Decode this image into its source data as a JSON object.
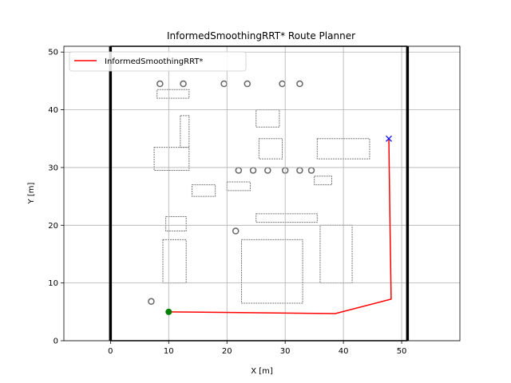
{
  "chart_data": {
    "type": "line",
    "title": "InformedSmoothingRRT* Route Planner",
    "xlabel": "X [m]",
    "ylabel": "Y [m]",
    "xlim": [
      -8,
      60
    ],
    "ylim": [
      0,
      51
    ],
    "xticks": [
      0,
      10,
      20,
      30,
      40,
      50
    ],
    "yticks": [
      0,
      10,
      20,
      30,
      40,
      50
    ],
    "grid": true,
    "legend_position": "top-left",
    "map_bounds": {
      "x": [
        0,
        51
      ],
      "y": [
        0,
        51
      ]
    },
    "series": [
      {
        "name": "InformedSmoothingRRT*",
        "color": "#ff0000",
        "x": [
          10,
          38.6,
          48.2,
          48.0,
          47.8
        ],
        "y": [
          5,
          4.7,
          7.2,
          20,
          35
        ]
      }
    ],
    "start": {
      "x": 10,
      "y": 5,
      "color": "#008000",
      "marker": "circle"
    },
    "goal": {
      "x": 47.8,
      "y": 35,
      "color": "#0000ff",
      "marker": "x"
    },
    "obstacles": [
      {
        "type": "rect",
        "x": [
          7.5,
          13.5
        ],
        "y": [
          29.5,
          33.5
        ]
      },
      {
        "type": "rect",
        "x": [
          12,
          13.5
        ],
        "y": [
          33.5,
          39
        ]
      },
      {
        "type": "rect",
        "x": [
          8,
          13.5
        ],
        "y": [
          42,
          43.5
        ]
      },
      {
        "type": "rect",
        "x": [
          25,
          29
        ],
        "y": [
          37,
          40
        ]
      },
      {
        "type": "rect",
        "x": [
          25.5,
          29.5
        ],
        "y": [
          31.5,
          35
        ]
      },
      {
        "type": "rect",
        "x": [
          35.5,
          44.5
        ],
        "y": [
          31.5,
          35
        ]
      },
      {
        "type": "rect",
        "x": [
          25,
          35.5
        ],
        "y": [
          20.5,
          22
        ]
      },
      {
        "type": "rect",
        "x": [
          22.5,
          33
        ],
        "y": [
          6.5,
          17.5
        ]
      },
      {
        "type": "rect",
        "x": [
          36,
          41.5
        ],
        "y": [
          10,
          20
        ]
      },
      {
        "type": "rect",
        "x": [
          9,
          13
        ],
        "y": [
          10,
          17.5
        ]
      },
      {
        "type": "rect",
        "x": [
          9.5,
          13
        ],
        "y": [
          19,
          21.5
        ]
      },
      {
        "type": "rect",
        "x": [
          35,
          38
        ],
        "y": [
          27,
          28.5
        ]
      },
      {
        "type": "rect",
        "x": [
          20,
          24
        ],
        "y": [
          26,
          27.5
        ]
      },
      {
        "type": "rect",
        "x": [
          14,
          18
        ],
        "y": [
          25,
          27
        ]
      }
    ],
    "obstacle_circles": [
      {
        "x": 8.5,
        "y": 44.5
      },
      {
        "x": 12.5,
        "y": 44.5
      },
      {
        "x": 19.5,
        "y": 44.5
      },
      {
        "x": 23.5,
        "y": 44.5
      },
      {
        "x": 29.5,
        "y": 44.5
      },
      {
        "x": 32.5,
        "y": 44.5
      },
      {
        "x": 22,
        "y": 29.5
      },
      {
        "x": 24.5,
        "y": 29.5
      },
      {
        "x": 27,
        "y": 29.5
      },
      {
        "x": 30,
        "y": 29.5
      },
      {
        "x": 32.5,
        "y": 29.5
      },
      {
        "x": 34.5,
        "y": 29.5
      },
      {
        "x": 7,
        "y": 6.8
      },
      {
        "x": 21.5,
        "y": 19
      }
    ]
  }
}
